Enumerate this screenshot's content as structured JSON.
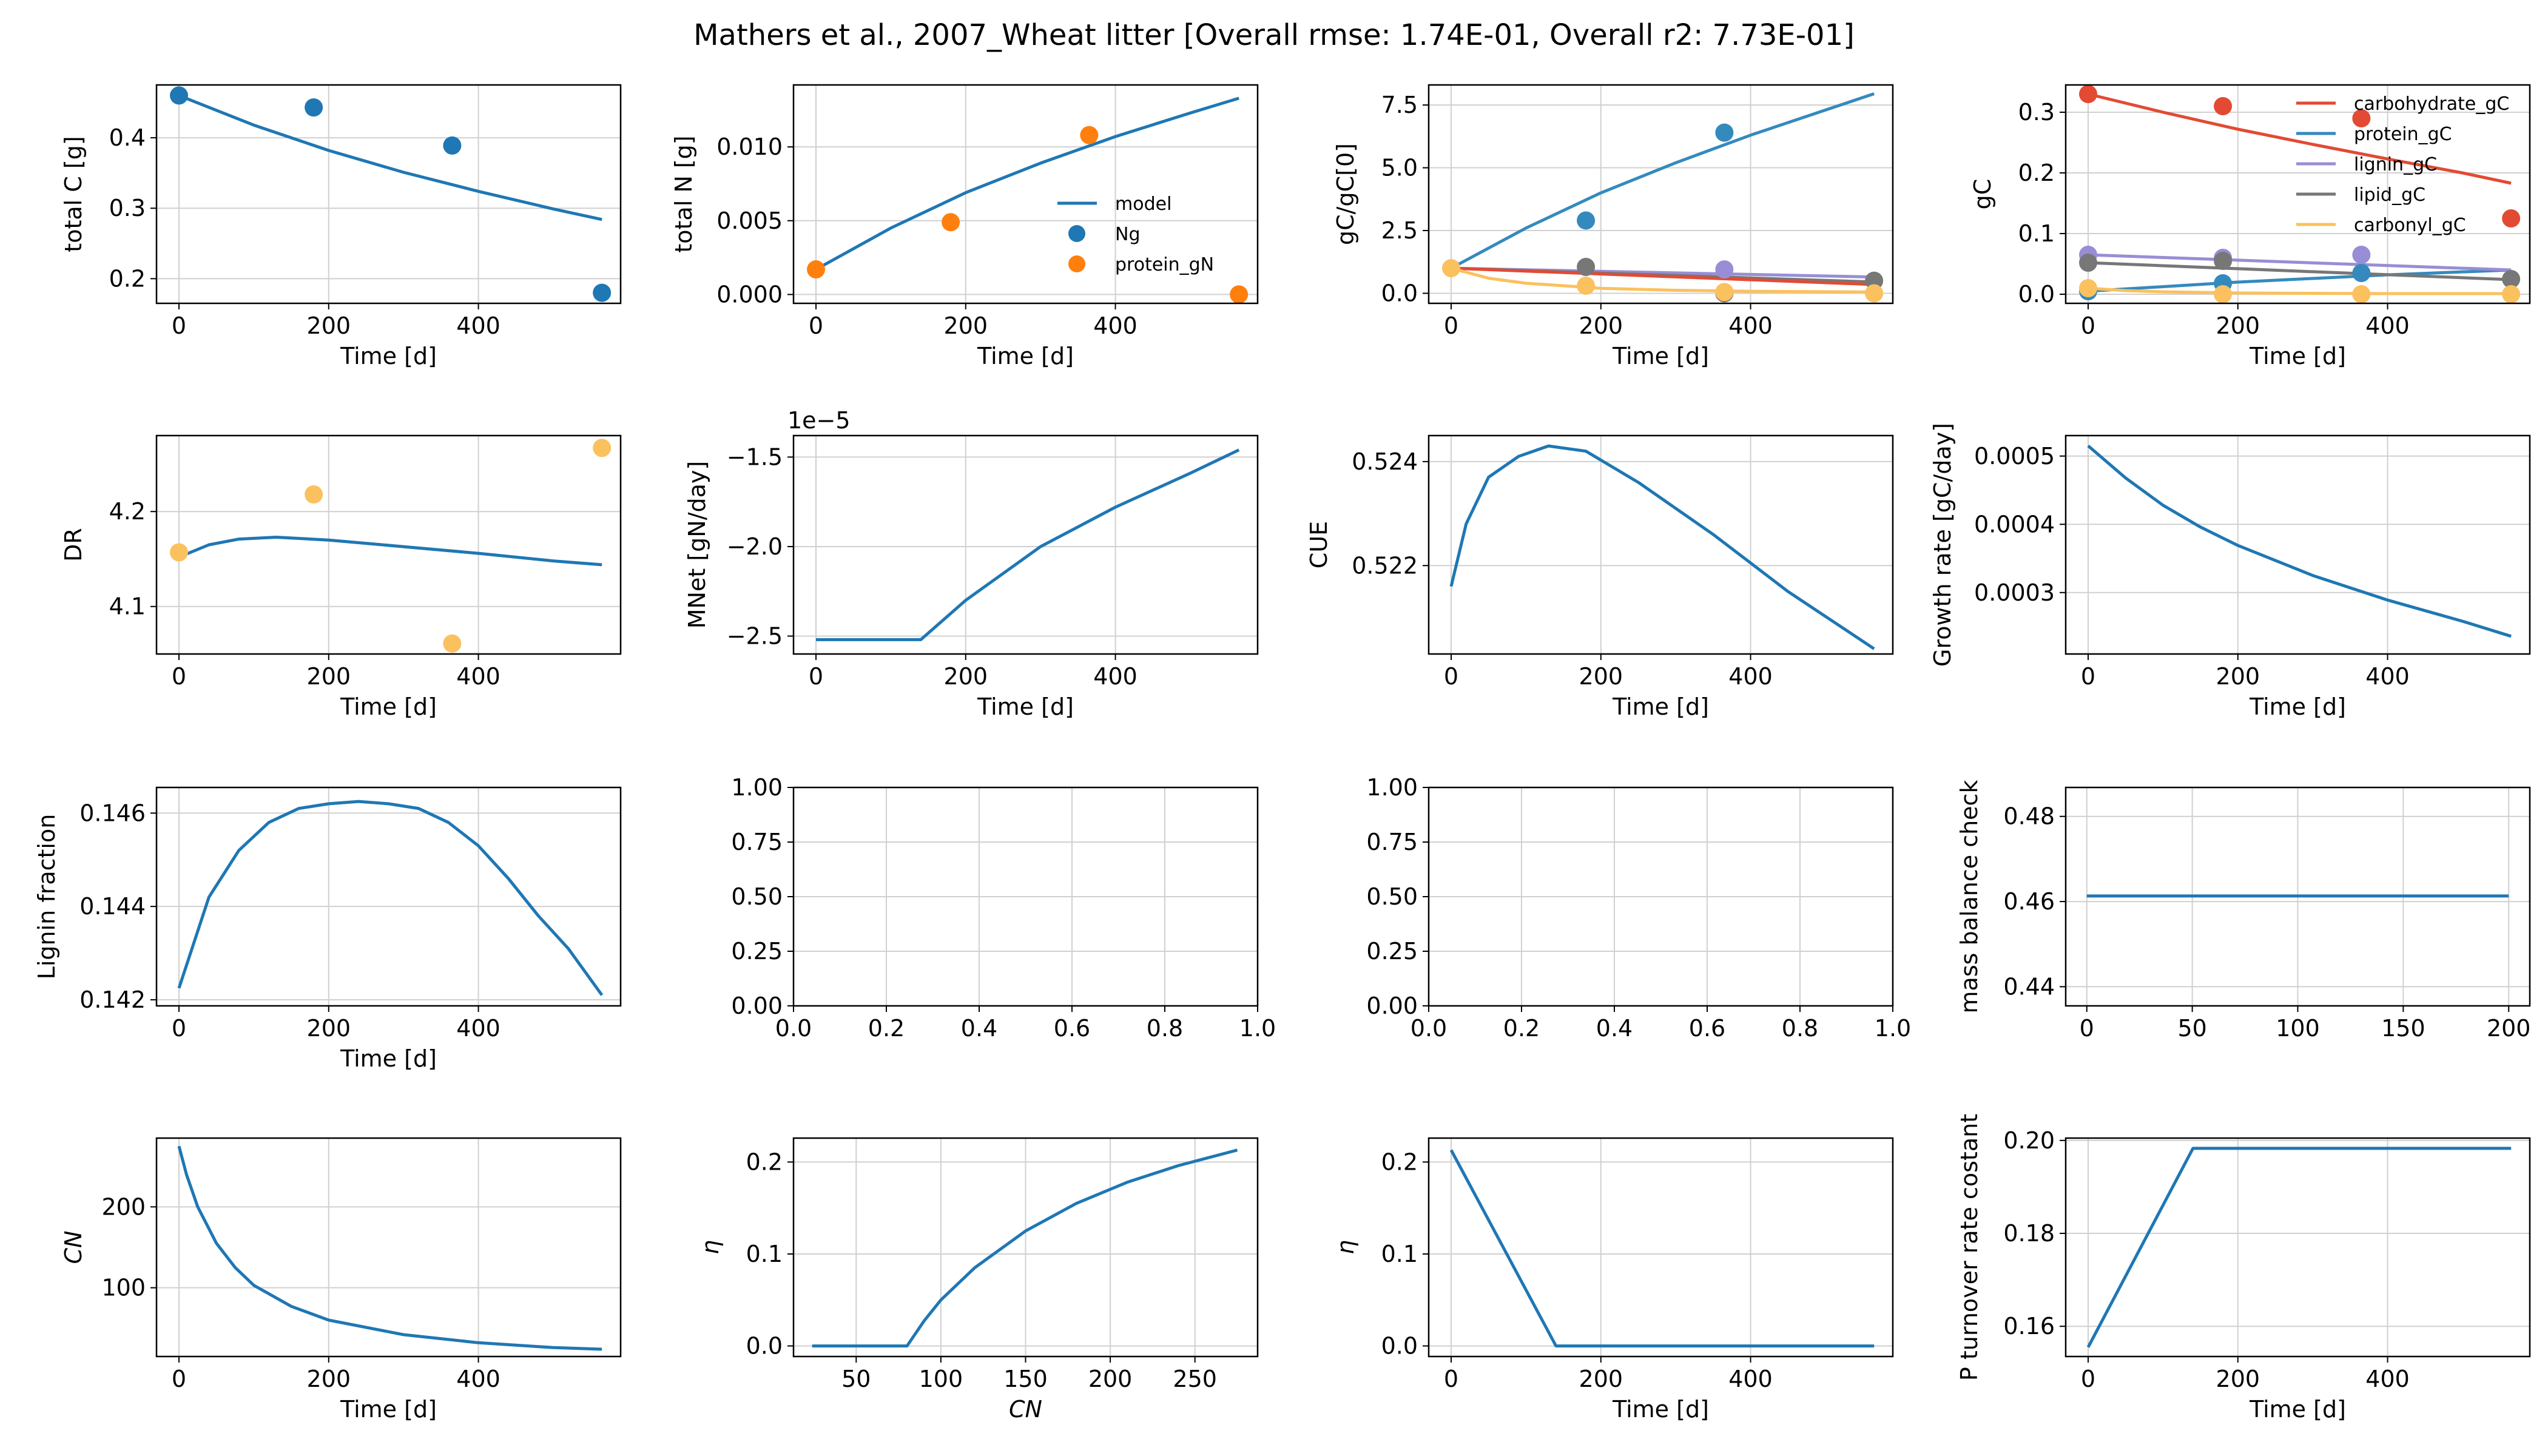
{
  "title": "Mathers et al., 2007_Wheat litter [Overall rmse: 1.74E-01, Overall r2: 7.73E-01]",
  "colors": {
    "model": "#1f77b4",
    "orange": "#ff7f0e",
    "carbohydrate": "#e24a33",
    "protein": "#348abd",
    "lignin": "#988ed5",
    "lipid": "#777777",
    "carbonyl": "#fbc15e",
    "grid": "#d0d0d0"
  },
  "chart_data": [
    {
      "type": "line",
      "xlabel": "Time [d]",
      "ylabel": "total C [g]",
      "xlim": [
        -30,
        590
      ],
      "ylim": [
        0.165,
        0.475
      ],
      "xticks": [
        0,
        200,
        400
      ],
      "yticks": [
        0.2,
        0.3,
        0.4
      ],
      "ytick_labels": [
        "0.2",
        "0.3",
        "0.4"
      ],
      "series": [
        {
          "kind": "line",
          "color": "model",
          "x": [
            0,
            100,
            200,
            300,
            400,
            500,
            565
          ],
          "y": [
            0.46,
            0.418,
            0.382,
            0.351,
            0.324,
            0.299,
            0.284
          ]
        },
        {
          "kind": "scatter",
          "color": "model",
          "x": [
            0,
            180,
            365,
            565
          ],
          "y": [
            0.46,
            0.443,
            0.389,
            0.18
          ]
        }
      ]
    },
    {
      "type": "line",
      "xlabel": "Time [d]",
      "ylabel": "total N [g]",
      "xlim": [
        -30,
        590
      ],
      "ylim": [
        -0.0006,
        0.0142
      ],
      "xticks": [
        0,
        200,
        400
      ],
      "yticks": [
        0,
        0.005,
        0.01
      ],
      "ytick_labels": [
        "0.000",
        "0.005",
        "0.010"
      ],
      "legend": {
        "position": "lower right",
        "entries": [
          {
            "label": "model",
            "kind": "line",
            "color": "model"
          },
          {
            "label": "Ng",
            "kind": "marker",
            "color": "model"
          },
          {
            "label": "protein_gN",
            "kind": "marker",
            "color": "orange"
          }
        ]
      },
      "series": [
        {
          "kind": "line",
          "color": "model",
          "x": [
            0,
            100,
            200,
            300,
            400,
            500,
            565
          ],
          "y": [
            0.0017,
            0.0045,
            0.0069,
            0.0089,
            0.0107,
            0.0123,
            0.0133
          ]
        },
        {
          "kind": "scatter",
          "color": "orange",
          "x": [
            0,
            180,
            365,
            565
          ],
          "y": [
            0.0017,
            0.0049,
            0.0108,
            0.0
          ]
        }
      ]
    },
    {
      "type": "line",
      "xlabel": "Time [d]",
      "ylabel": "gC/gC[0]",
      "xlim": [
        -30,
        590
      ],
      "ylim": [
        -0.4,
        8.3
      ],
      "xticks": [
        0,
        200,
        400
      ],
      "yticks": [
        0,
        2.5,
        5,
        7.5
      ],
      "ytick_labels": [
        "0.0",
        "2.5",
        "5.0",
        "7.5"
      ],
      "series": [
        {
          "kind": "line",
          "color": "protein",
          "x": [
            0,
            100,
            200,
            300,
            400,
            500,
            565
          ],
          "y": [
            1.0,
            2.6,
            4.0,
            5.2,
            6.3,
            7.3,
            7.95
          ]
        },
        {
          "kind": "line",
          "color": "lignin",
          "x": [
            0,
            565
          ],
          "y": [
            1.0,
            0.65
          ]
        },
        {
          "kind": "line",
          "color": "lipid",
          "x": [
            0,
            565
          ],
          "y": [
            1.0,
            0.45
          ]
        },
        {
          "kind": "line",
          "color": "carbohydrate",
          "x": [
            0,
            565
          ],
          "y": [
            1.0,
            0.35
          ]
        },
        {
          "kind": "line",
          "color": "carbonyl",
          "x": [
            0,
            50,
            100,
            200,
            300,
            400,
            565
          ],
          "y": [
            1.0,
            0.6,
            0.4,
            0.2,
            0.12,
            0.08,
            0.05
          ]
        },
        {
          "kind": "scatter",
          "color": "protein",
          "x": [
            180,
            365
          ],
          "y": [
            2.9,
            6.4
          ]
        },
        {
          "kind": "scatter",
          "color": "lipid",
          "x": [
            180,
            365,
            565
          ],
          "y": [
            1.05,
            0.0,
            0.5
          ]
        },
        {
          "kind": "scatter",
          "color": "lignin",
          "x": [
            365
          ],
          "y": [
            0.95
          ]
        },
        {
          "kind": "scatter",
          "color": "carbonyl",
          "x": [
            0,
            180,
            365,
            565
          ],
          "y": [
            1.0,
            0.3,
            0.05,
            0.0
          ]
        }
      ]
    },
    {
      "type": "line",
      "xlabel": "Time [d]",
      "ylabel": "gC",
      "xlim": [
        -30,
        590
      ],
      "ylim": [
        -0.015,
        0.345
      ],
      "xticks": [
        0,
        200,
        400
      ],
      "yticks": [
        0,
        0.1,
        0.2,
        0.3
      ],
      "ytick_labels": [
        "0.0",
        "0.1",
        "0.2",
        "0.3"
      ],
      "legend": {
        "position": "upper right",
        "entries": [
          {
            "label": "carbohydrate_gC",
            "kind": "line",
            "color": "carbohydrate"
          },
          {
            "label": "protein_gC",
            "kind": "line",
            "color": "protein"
          },
          {
            "label": "lignin_gC",
            "kind": "line",
            "color": "lignin"
          },
          {
            "label": "lipid_gC",
            "kind": "line",
            "color": "lipid"
          },
          {
            "label": "carbonyl_gC",
            "kind": "line",
            "color": "carbonyl"
          }
        ]
      },
      "series": [
        {
          "kind": "line",
          "color": "carbohydrate",
          "x": [
            0,
            100,
            200,
            300,
            400,
            500,
            565
          ],
          "y": [
            0.33,
            0.3,
            0.272,
            0.247,
            0.223,
            0.2,
            0.183
          ]
        },
        {
          "kind": "line",
          "color": "protein",
          "x": [
            0,
            200,
            400,
            565
          ],
          "y": [
            0.005,
            0.02,
            0.032,
            0.04
          ]
        },
        {
          "kind": "line",
          "color": "lignin",
          "x": [
            0,
            565
          ],
          "y": [
            0.065,
            0.04
          ]
        },
        {
          "kind": "line",
          "color": "lipid",
          "x": [
            0,
            565
          ],
          "y": [
            0.052,
            0.024
          ]
        },
        {
          "kind": "line",
          "color": "carbonyl",
          "x": [
            0,
            50,
            100,
            200,
            400,
            565
          ],
          "y": [
            0.01,
            0.006,
            0.004,
            0.002,
            0.001,
            0.001
          ]
        },
        {
          "kind": "scatter",
          "color": "carbohydrate",
          "x": [
            0,
            180,
            365,
            565
          ],
          "y": [
            0.33,
            0.31,
            0.29,
            0.125
          ]
        },
        {
          "kind": "scatter",
          "color": "lignin",
          "x": [
            0,
            180,
            365
          ],
          "y": [
            0.065,
            0.06,
            0.065
          ]
        },
        {
          "kind": "scatter",
          "color": "lipid",
          "x": [
            0,
            180,
            565
          ],
          "y": [
            0.052,
            0.055,
            0.025
          ]
        },
        {
          "kind": "scatter",
          "color": "protein",
          "x": [
            0,
            180,
            365
          ],
          "y": [
            0.005,
            0.018,
            0.035
          ]
        },
        {
          "kind": "scatter",
          "color": "carbonyl",
          "x": [
            0,
            180,
            365,
            565
          ],
          "y": [
            0.01,
            0.0,
            0.0,
            0.0
          ]
        }
      ]
    },
    {
      "type": "line",
      "xlabel": "Time [d]",
      "ylabel": "DR",
      "xlim": [
        -30,
        590
      ],
      "ylim": [
        4.05,
        4.28
      ],
      "xticks": [
        0,
        200,
        400
      ],
      "yticks": [
        4.1,
        4.2
      ],
      "ytick_labels": [
        "4.1",
        "4.2"
      ],
      "series": [
        {
          "kind": "line",
          "color": "model",
          "x": [
            0,
            40,
            80,
            130,
            200,
            300,
            400,
            500,
            565
          ],
          "y": [
            4.152,
            4.165,
            4.171,
            4.173,
            4.17,
            4.163,
            4.156,
            4.148,
            4.144
          ]
        },
        {
          "kind": "scatter",
          "color": "carbonyl",
          "x": [
            0,
            180,
            365,
            565
          ],
          "y": [
            4.157,
            4.218,
            4.061,
            4.267
          ]
        }
      ]
    },
    {
      "type": "line",
      "xlabel": "Time [d]",
      "ylabel": "MNet [gN/day]",
      "xlim": [
        -30,
        590
      ],
      "ylim": [
        -2.6e-05,
        -1.38e-05
      ],
      "xticks": [
        0,
        200,
        400
      ],
      "yticks": [
        -2.5e-05,
        -2e-05,
        -1.5e-05
      ],
      "ytick_labels": [
        "−2.5",
        "−2.0",
        "−1.5"
      ],
      "offset_label": "1e−5",
      "series": [
        {
          "kind": "line",
          "color": "model",
          "x": [
            0,
            140,
            200,
            300,
            400,
            500,
            565
          ],
          "y": [
            -2.52e-05,
            -2.52e-05,
            -2.3e-05,
            -2e-05,
            -1.78e-05,
            -1.59e-05,
            -1.46e-05
          ]
        }
      ]
    },
    {
      "type": "line",
      "xlabel": "Time [d]",
      "ylabel": "CUE",
      "xlim": [
        -30,
        590
      ],
      "ylim": [
        0.5203,
        0.5245
      ],
      "xticks": [
        0,
        200,
        400
      ],
      "yticks": [
        0.522,
        0.524
      ],
      "ytick_labels": [
        "0.522",
        "0.524"
      ],
      "series": [
        {
          "kind": "line",
          "color": "model",
          "x": [
            0,
            20,
            50,
            90,
            130,
            180,
            250,
            350,
            450,
            565
          ],
          "y": [
            0.5216,
            0.5228,
            0.5237,
            0.5241,
            0.5243,
            0.5242,
            0.5236,
            0.5226,
            0.5215,
            0.5204
          ]
        }
      ]
    },
    {
      "type": "line",
      "xlabel": "Time [d]",
      "ylabel": "Growth rate [gC/day]",
      "xlim": [
        -30,
        590
      ],
      "ylim": [
        0.00021,
        0.00053
      ],
      "xticks": [
        0,
        200,
        400
      ],
      "yticks": [
        0.0003,
        0.0004,
        0.0005
      ],
      "ytick_labels": [
        "0.0003",
        "0.0004",
        "0.0005"
      ],
      "series": [
        {
          "kind": "line",
          "color": "model",
          "x": [
            0,
            50,
            100,
            150,
            200,
            300,
            400,
            500,
            565
          ],
          "y": [
            0.000515,
            0.000468,
            0.000428,
            0.000396,
            0.000369,
            0.000325,
            0.000289,
            0.000258,
            0.000236
          ]
        }
      ]
    },
    {
      "type": "line",
      "xlabel": "Time [d]",
      "ylabel": "Lignin fraction",
      "xlim": [
        -30,
        590
      ],
      "ylim": [
        0.14187,
        0.14655
      ],
      "xticks": [
        0,
        200,
        400
      ],
      "yticks": [
        0.142,
        0.144,
        0.146
      ],
      "ytick_labels": [
        "0.142",
        "0.144",
        "0.146"
      ],
      "series": [
        {
          "kind": "line",
          "color": "model",
          "x": [
            0,
            40,
            80,
            120,
            160,
            200,
            240,
            280,
            320,
            360,
            400,
            440,
            480,
            520,
            565
          ],
          "y": [
            0.14225,
            0.1442,
            0.1452,
            0.1458,
            0.1461,
            0.1462,
            0.14625,
            0.1462,
            0.1461,
            0.1458,
            0.1453,
            0.1446,
            0.1438,
            0.1431,
            0.1421
          ]
        }
      ]
    },
    {
      "type": "line",
      "xlabel": "",
      "ylabel": "",
      "xlim": [
        0,
        1
      ],
      "ylim": [
        0,
        1
      ],
      "xticks": [
        0,
        0.2,
        0.4,
        0.6,
        0.8,
        1
      ],
      "xtick_labels": [
        "0.0",
        "0.2",
        "0.4",
        "0.6",
        "0.8",
        "1.0"
      ],
      "yticks": [
        0,
        0.25,
        0.5,
        0.75,
        1
      ],
      "ytick_labels": [
        "0.00",
        "0.25",
        "0.50",
        "0.75",
        "1.00"
      ],
      "series": []
    },
    {
      "type": "line",
      "xlabel": "",
      "ylabel": "",
      "xlim": [
        0,
        1
      ],
      "ylim": [
        0,
        1
      ],
      "xticks": [
        0,
        0.2,
        0.4,
        0.6,
        0.8,
        1
      ],
      "xtick_labels": [
        "0.0",
        "0.2",
        "0.4",
        "0.6",
        "0.8",
        "1.0"
      ],
      "yticks": [
        0,
        0.25,
        0.5,
        0.75,
        1
      ],
      "ytick_labels": [
        "0.00",
        "0.25",
        "0.50",
        "0.75",
        "1.00"
      ],
      "series": []
    },
    {
      "type": "line",
      "xlabel": "",
      "ylabel": "mass balance check",
      "xlim": [
        -10,
        210
      ],
      "ylim": [
        0.4355,
        0.4868
      ],
      "xticks": [
        0,
        50,
        100,
        150,
        200
      ],
      "yticks": [
        0.44,
        0.46,
        0.48
      ],
      "ytick_labels": [
        "0.44",
        "0.46",
        "0.48"
      ],
      "series": [
        {
          "kind": "line",
          "color": "model",
          "x": [
            0,
            200
          ],
          "y": [
            0.4613,
            0.4613
          ]
        }
      ]
    },
    {
      "type": "line",
      "xlabel": "Time [d]",
      "ylabel": "CN",
      "xlim": [
        -30,
        590
      ],
      "ylim": [
        15,
        285
      ],
      "xticks": [
        0,
        200,
        400
      ],
      "yticks": [
        100,
        200
      ],
      "ytick_labels": [
        "100",
        "200"
      ],
      "series": [
        {
          "kind": "line",
          "color": "model",
          "x": [
            0,
            10,
            25,
            50,
            75,
            100,
            150,
            200,
            300,
            400,
            500,
            565
          ],
          "y": [
            275,
            240,
            200,
            155,
            125,
            103,
            77,
            60,
            42,
            32,
            26,
            24
          ]
        }
      ]
    },
    {
      "type": "line",
      "xlabel": "CN",
      "ylabel": "η",
      "xlim": [
        13,
        287
      ],
      "ylim": [
        -0.0115,
        0.226
      ],
      "xticks": [
        50,
        100,
        150,
        200,
        250
      ],
      "yticks": [
        0,
        0.1,
        0.2
      ],
      "ytick_labels": [
        "0.0",
        "0.1",
        "0.2"
      ],
      "series": [
        {
          "kind": "line",
          "color": "model",
          "x": [
            24,
            80,
            90,
            100,
            120,
            150,
            180,
            210,
            240,
            275
          ],
          "y": [
            0,
            0,
            0.027,
            0.05,
            0.085,
            0.125,
            0.155,
            0.178,
            0.196,
            0.213
          ]
        }
      ]
    },
    {
      "type": "line",
      "xlabel": "Time [d]",
      "ylabel": "η",
      "xlim": [
        -30,
        590
      ],
      "ylim": [
        -0.0115,
        0.226
      ],
      "xticks": [
        0,
        200,
        400
      ],
      "yticks": [
        0,
        0.1,
        0.2
      ],
      "ytick_labels": [
        "0.0",
        "0.1",
        "0.2"
      ],
      "series": [
        {
          "kind": "line",
          "color": "model",
          "x": [
            0,
            140,
            565
          ],
          "y": [
            0.213,
            0,
            0
          ]
        }
      ]
    },
    {
      "type": "line",
      "xlabel": "Time [d]",
      "ylabel": "P turnover rate costant",
      "xlim": [
        -30,
        590
      ],
      "ylim": [
        0.1535,
        0.2005
      ],
      "xticks": [
        0,
        200,
        400
      ],
      "yticks": [
        0.16,
        0.18,
        0.2
      ],
      "ytick_labels": [
        "0.16",
        "0.18",
        "0.20"
      ],
      "series": [
        {
          "kind": "line",
          "color": "model",
          "x": [
            0,
            140,
            565
          ],
          "y": [
            0.1555,
            0.1983,
            0.1983
          ]
        }
      ]
    }
  ]
}
